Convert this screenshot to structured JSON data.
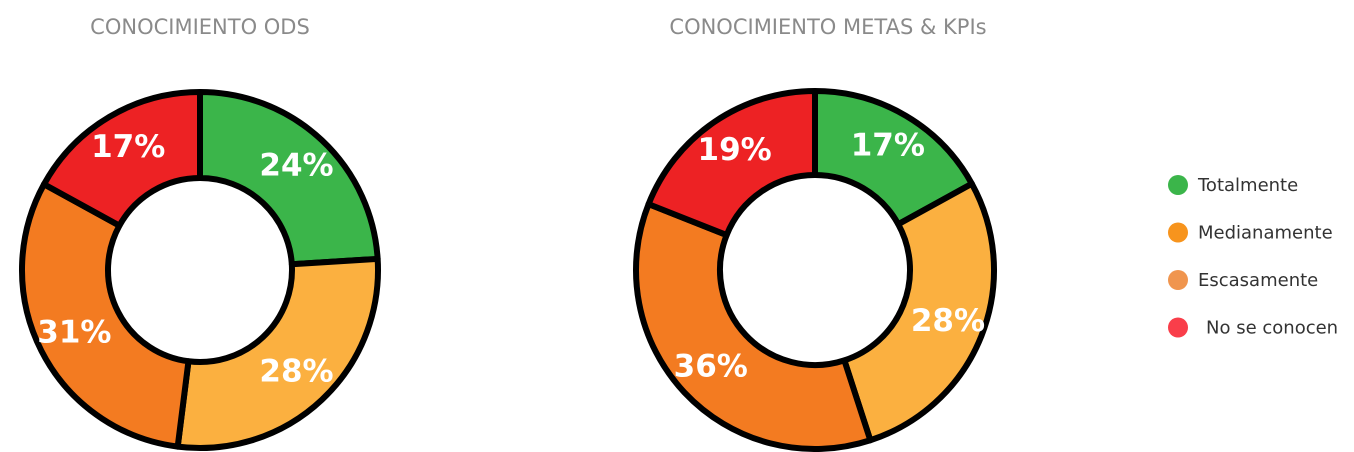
{
  "charts": [
    {
      "type": "donut",
      "title": "CONOCIMIENTO ODS",
      "categories": [
        "Totalmente",
        "Medianamente",
        "Escasamente",
        "No se conocen"
      ],
      "values": [
        24,
        28,
        31,
        17
      ],
      "value_labels": [
        "24%",
        "28%",
        "31%",
        "17%"
      ],
      "colors": [
        "#3bb54a",
        "#fbb040",
        "#f37b21",
        "#ed2224"
      ]
    },
    {
      "type": "donut",
      "title": "CONOCIMIENTO METAS & KPIs",
      "categories": [
        "Totalmente",
        "Medianamente",
        "Escasamente",
        "No se conocen"
      ],
      "values": [
        17,
        28,
        36,
        19
      ],
      "value_labels": [
        "17%",
        "28%",
        "36%",
        "19%"
      ],
      "colors": [
        "#3bb54a",
        "#fbb040",
        "#f37b21",
        "#ed2224"
      ]
    }
  ],
  "legend": {
    "items": [
      {
        "name": "Totalmente",
        "color": "#3bb54a"
      },
      {
        "name": "Medianamente",
        "color": "#f7941d"
      },
      {
        "name": "Escasamente",
        "color": "#f0954e"
      },
      {
        "name": "No se conocen",
        "color": "#f93e4a"
      }
    ]
  }
}
